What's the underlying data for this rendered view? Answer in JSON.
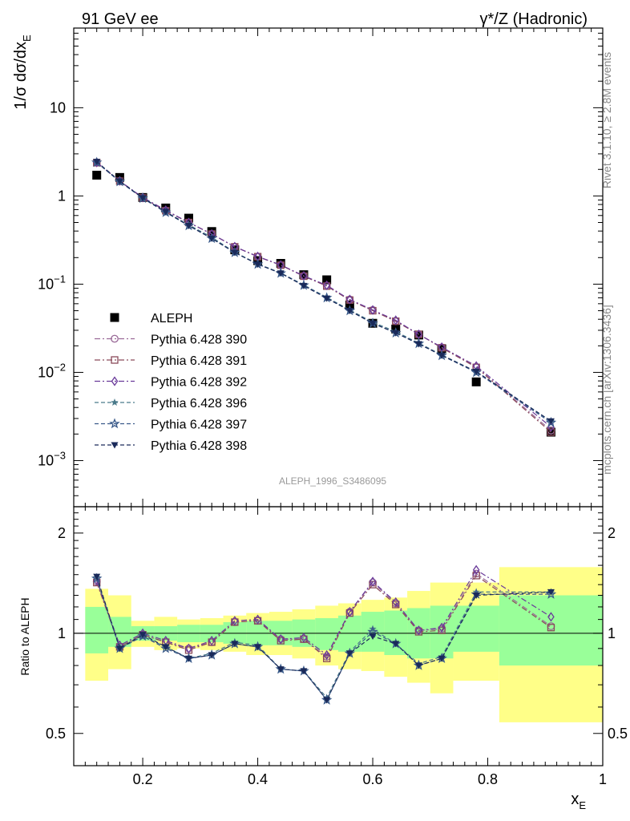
{
  "header": {
    "left": "91 GeV ee",
    "right": "γ*/Z (Hadronic)"
  },
  "side_labels": {
    "top": "Rivet 3.1.10, ≥ 2.8M events",
    "bottom": "mcplots.cern.ch [arXiv:1306.3436]"
  },
  "watermark": "ALEPH_1996_S3486095",
  "chart_data": [
    {
      "panel": "main",
      "type": "scatter",
      "y_scale": "log",
      "ylim": [
        0.0003,
        80
      ],
      "xlim": [
        0.08,
        1.0
      ],
      "ylabel": "1/σ dσ/dx_E",
      "y_ticks": [
        "10⁻³",
        "10⁻²",
        "10⁻¹",
        "1",
        "10"
      ],
      "legend_position": "middle-left",
      "x": [
        0.12,
        0.16,
        0.2,
        0.24,
        0.28,
        0.32,
        0.36,
        0.4,
        0.44,
        0.48,
        0.52,
        0.56,
        0.6,
        0.64,
        0.68,
        0.72,
        0.78,
        0.91
      ],
      "series": [
        {
          "name": "ALEPH",
          "color": "#000000",
          "marker": "square-filled",
          "values": [
            1.72,
            1.62,
            0.96,
            0.73,
            0.56,
            0.395,
            0.245,
            0.185,
            0.172,
            0.128,
            0.112,
            0.058,
            0.036,
            0.031,
            0.0265,
            0.0185,
            0.0078,
            0.0021
          ]
        },
        {
          "name": "Pythia 6.428 390",
          "color": "#9a6a98",
          "marker": "circle-open",
          "dash": "7,3,2,3",
          "values": [
            2.4,
            1.48,
            0.95,
            0.68,
            0.5,
            0.37,
            0.265,
            0.205,
            0.165,
            0.124,
            0.096,
            0.067,
            0.051,
            0.038,
            0.027,
            0.0192,
            0.0115,
            0.0022
          ]
        },
        {
          "name": "Pythia 6.428 391",
          "color": "#8a4a5a",
          "marker": "square-open",
          "dash": "7,3,2,3",
          "values": [
            2.38,
            1.47,
            0.95,
            0.68,
            0.5,
            0.37,
            0.265,
            0.205,
            0.164,
            0.123,
            0.095,
            0.066,
            0.05,
            0.038,
            0.027,
            0.019,
            0.0114,
            0.0021
          ]
        },
        {
          "name": "Pythia 6.428 392",
          "color": "#6a3a9a",
          "marker": "diamond-open",
          "dash": "7,3,2,3",
          "values": [
            2.4,
            1.48,
            0.96,
            0.69,
            0.5,
            0.37,
            0.266,
            0.206,
            0.165,
            0.124,
            0.097,
            0.067,
            0.051,
            0.039,
            0.027,
            0.0193,
            0.0118,
            0.0024
          ]
        },
        {
          "name": "Pythia 6.428 396",
          "color": "#4a7a8a",
          "marker": "star-filled",
          "dash": "5,3",
          "values": [
            2.42,
            1.46,
            0.95,
            0.66,
            0.47,
            0.34,
            0.23,
            0.17,
            0.134,
            0.098,
            0.071,
            0.051,
            0.037,
            0.029,
            0.0215,
            0.0158,
            0.0102,
            0.0028
          ]
        },
        {
          "name": "Pythia 6.428 397",
          "color": "#3a5a8a",
          "marker": "star-open",
          "dash": "5,3",
          "values": [
            2.4,
            1.45,
            0.94,
            0.65,
            0.46,
            0.33,
            0.228,
            0.168,
            0.133,
            0.097,
            0.07,
            0.05,
            0.036,
            0.028,
            0.0212,
            0.0155,
            0.01,
            0.0027
          ]
        },
        {
          "name": "Pythia 6.428 398",
          "color": "#1a2a5a",
          "marker": "triangle-down-filled",
          "dash": "5,3",
          "values": [
            2.45,
            1.47,
            0.95,
            0.66,
            0.46,
            0.33,
            0.228,
            0.168,
            0.133,
            0.096,
            0.069,
            0.05,
            0.036,
            0.028,
            0.021,
            0.0156,
            0.0102,
            0.0028
          ]
        }
      ]
    },
    {
      "panel": "ratio",
      "type": "line",
      "y_scale": "log",
      "ylim": [
        0.4,
        2.4
      ],
      "xlim": [
        0.08,
        1.0
      ],
      "ylabel": "Ratio to ALEPH",
      "xlabel": "x_E",
      "y_ticks": [
        "0.5",
        "1",
        "2"
      ],
      "x_ticks": [
        "0.2",
        "0.4",
        "0.6",
        "0.8",
        "1"
      ],
      "bands": {
        "edges": [
          0.1,
          0.14,
          0.18,
          0.22,
          0.26,
          0.3,
          0.34,
          0.38,
          0.42,
          0.46,
          0.5,
          0.54,
          0.58,
          0.62,
          0.66,
          0.7,
          0.74,
          0.82,
          1.0
        ],
        "inner": [
          [
            0.87,
            1.2
          ],
          [
            0.91,
            1.12
          ],
          [
            0.95,
            1.05
          ],
          [
            0.95,
            1.05
          ],
          [
            0.94,
            1.06
          ],
          [
            0.94,
            1.06
          ],
          [
            0.93,
            1.08
          ],
          [
            0.92,
            1.09
          ],
          [
            0.92,
            1.09
          ],
          [
            0.91,
            1.1
          ],
          [
            0.89,
            1.11
          ],
          [
            0.88,
            1.13
          ],
          [
            0.88,
            1.16
          ],
          [
            0.86,
            1.17
          ],
          [
            0.84,
            1.19
          ],
          [
            0.84,
            1.21
          ],
          [
            0.88,
            1.21
          ],
          [
            0.8,
            1.3
          ]
        ],
        "outer": [
          [
            0.72,
            1.36
          ],
          [
            0.78,
            1.3
          ],
          [
            0.91,
            1.09
          ],
          [
            0.89,
            1.12
          ],
          [
            0.9,
            1.1
          ],
          [
            0.89,
            1.11
          ],
          [
            0.88,
            1.13
          ],
          [
            0.86,
            1.15
          ],
          [
            0.86,
            1.16
          ],
          [
            0.84,
            1.18
          ],
          [
            0.8,
            1.21
          ],
          [
            0.78,
            1.23
          ],
          [
            0.77,
            1.26
          ],
          [
            0.74,
            1.28
          ],
          [
            0.71,
            1.34
          ],
          [
            0.66,
            1.42
          ],
          [
            0.72,
            1.42
          ],
          [
            0.54,
            1.58
          ]
        ],
        "inner_color": "#99ff99",
        "outer_color": "#ffff88"
      },
      "x": [
        0.12,
        0.16,
        0.2,
        0.24,
        0.28,
        0.32,
        0.36,
        0.4,
        0.44,
        0.48,
        0.52,
        0.56,
        0.6,
        0.64,
        0.68,
        0.72,
        0.78,
        0.91
      ],
      "series": [
        {
          "name": "Pythia 6.428 390",
          "values": [
            1.43,
            0.91,
            0.99,
            0.94,
            0.9,
            0.94,
            1.08,
            1.09,
            0.96,
            0.96,
            0.85,
            1.16,
            1.42,
            1.23,
            1.02,
            1.03,
            1.51,
            1.05
          ]
        },
        {
          "name": "Pythia 6.428 391",
          "values": [
            1.42,
            0.91,
            0.99,
            0.94,
            0.89,
            0.94,
            1.08,
            1.09,
            0.95,
            0.96,
            0.84,
            1.15,
            1.4,
            1.22,
            1.01,
            1.02,
            1.49,
            1.04
          ]
        },
        {
          "name": "Pythia 6.428 392",
          "values": [
            1.44,
            0.92,
            1.0,
            0.95,
            0.9,
            0.95,
            1.09,
            1.1,
            0.96,
            0.97,
            0.86,
            1.16,
            1.43,
            1.24,
            1.02,
            1.04,
            1.55,
            1.12
          ]
        },
        {
          "name": "Pythia 6.428 396",
          "values": [
            1.47,
            0.9,
            0.98,
            0.91,
            0.84,
            0.87,
            0.94,
            0.92,
            0.78,
            0.77,
            0.64,
            0.88,
            1.03,
            0.93,
            0.81,
            0.85,
            1.33,
            1.33
          ]
        },
        {
          "name": "Pythia 6.428 397",
          "values": [
            1.46,
            0.9,
            0.98,
            0.9,
            0.84,
            0.86,
            0.93,
            0.91,
            0.78,
            0.77,
            0.63,
            0.87,
            1.01,
            0.93,
            0.8,
            0.84,
            1.31,
            1.31
          ]
        },
        {
          "name": "Pythia 6.428 398",
          "values": [
            1.48,
            0.9,
            0.99,
            0.91,
            0.84,
            0.86,
            0.93,
            0.91,
            0.78,
            0.77,
            0.63,
            0.87,
            0.98,
            0.93,
            0.8,
            0.84,
            1.3,
            1.33
          ]
        }
      ]
    }
  ]
}
